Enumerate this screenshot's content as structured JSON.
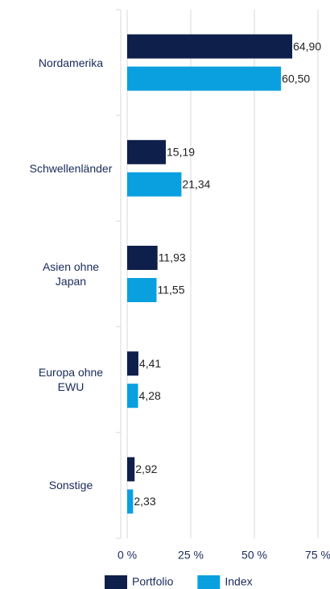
{
  "chart_data": {
    "type": "hbar",
    "categories": [
      "Nordamerika",
      "Schwellenländer",
      "Asien ohne Japan",
      "Europa ohne EWU",
      "Sonstige"
    ],
    "series": [
      {
        "name": "Portfolio",
        "color": "#0f1f4b",
        "values": [
          64.9,
          15.19,
          11.93,
          4.41,
          2.92
        ],
        "value_labels": [
          "64,90",
          "15,19",
          "11,93",
          "4,41",
          "2,92"
        ]
      },
      {
        "name": "Index",
        "color": "#0aa0e0",
        "values": [
          60.5,
          21.34,
          11.55,
          4.28,
          2.33
        ],
        "value_labels": [
          "60,50",
          "21,34",
          "11,55",
          "4,28",
          "2,33"
        ]
      }
    ],
    "xlim": [
      0,
      75
    ],
    "xticks": [
      {
        "value": 0,
        "label": "0 %"
      },
      {
        "value": 25,
        "label": "25 %"
      },
      {
        "value": 50,
        "label": "50 %"
      },
      {
        "value": 75,
        "label": "75 %"
      }
    ],
    "grid": true,
    "legend": "bottom"
  }
}
